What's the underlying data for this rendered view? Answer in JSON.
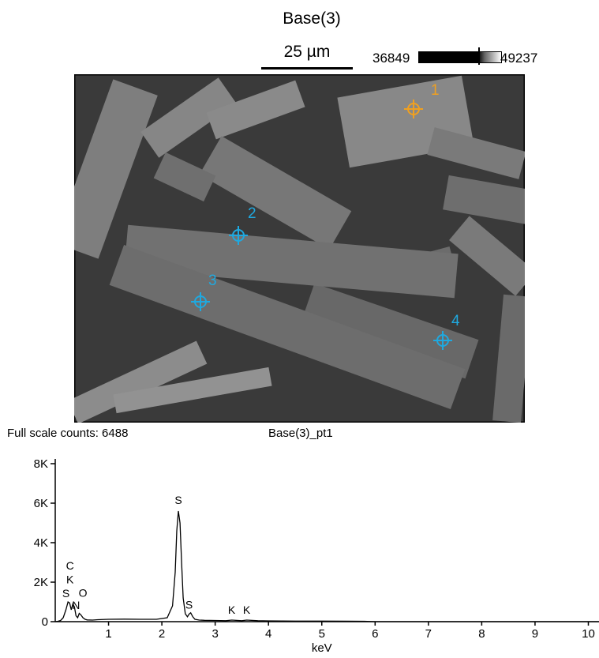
{
  "header": {
    "title": "Base(3)",
    "scale_label": "25 µm",
    "colorbar_min": "36849",
    "colorbar_max": "49237"
  },
  "sem_image": {
    "points": [
      {
        "label": "1",
        "color": "#f0a020"
      },
      {
        "label": "2",
        "color": "#1fa9e0"
      },
      {
        "label": "3",
        "color": "#1fa9e0"
      },
      {
        "label": "4",
        "color": "#1fa9e0"
      }
    ]
  },
  "spectrum_header": {
    "counts_label": "Full scale counts: 6488",
    "point_label": "Base(3)_pt1"
  },
  "chart_data": {
    "type": "line",
    "title": "",
    "xlabel": "keV",
    "ylabel": "",
    "xlim": [
      0,
      10.2
    ],
    "ylim": [
      0,
      8000
    ],
    "x_ticks": [
      1,
      2,
      3,
      4,
      5,
      6,
      7,
      8,
      9,
      10
    ],
    "y_ticks": [
      0,
      2000,
      4000,
      6000,
      8000
    ],
    "y_tick_labels": [
      "0",
      "2K",
      "4K",
      "6K",
      "8K"
    ],
    "series": [
      {
        "x": [
          0.0,
          0.05,
          0.1,
          0.15,
          0.2,
          0.24,
          0.27,
          0.3,
          0.33,
          0.36,
          0.39,
          0.42,
          0.45,
          0.48,
          0.52,
          0.56,
          0.6,
          0.7,
          0.8,
          1.0,
          1.3,
          1.6,
          1.9,
          2.1,
          2.2,
          2.25,
          2.28,
          2.31,
          2.34,
          2.37,
          2.4,
          2.44,
          2.48,
          2.51,
          2.54,
          2.58,
          2.62,
          2.7,
          2.8,
          3.0,
          3.2,
          3.31,
          3.5,
          3.59,
          3.8,
          4.0,
          4.5,
          5.0,
          5.5,
          5.8,
          5.9,
          6.0,
          7.0,
          8.0,
          9.0,
          10.0,
          10.2
        ],
        "y": [
          0,
          20,
          60,
          200,
          600,
          1000,
          950,
          600,
          900,
          750,
          300,
          200,
          420,
          350,
          200,
          120,
          90,
          80,
          100,
          120,
          130,
          120,
          120,
          200,
          800,
          2500,
          4600,
          5600,
          5000,
          3000,
          1200,
          400,
          250,
          380,
          450,
          250,
          120,
          80,
          70,
          60,
          50,
          80,
          50,
          80,
          50,
          40,
          30,
          30,
          25,
          20,
          10,
          0,
          0,
          0,
          0,
          0,
          0
        ]
      }
    ],
    "annotations": [
      {
        "text": "C",
        "x": 0.277,
        "y": 2650
      },
      {
        "text": "K",
        "x": 0.277,
        "y": 1950
      },
      {
        "text": "S",
        "x": 0.2,
        "y": 1250
      },
      {
        "text": "N",
        "x": 0.39,
        "y": 650
      },
      {
        "text": "O",
        "x": 0.52,
        "y": 1270
      },
      {
        "text": "S",
        "x": 2.31,
        "y": 5960
      },
      {
        "text": "S",
        "x": 2.51,
        "y": 670
      },
      {
        "text": "K",
        "x": 3.31,
        "y": 400
      },
      {
        "text": "K",
        "x": 3.59,
        "y": 400
      }
    ]
  }
}
